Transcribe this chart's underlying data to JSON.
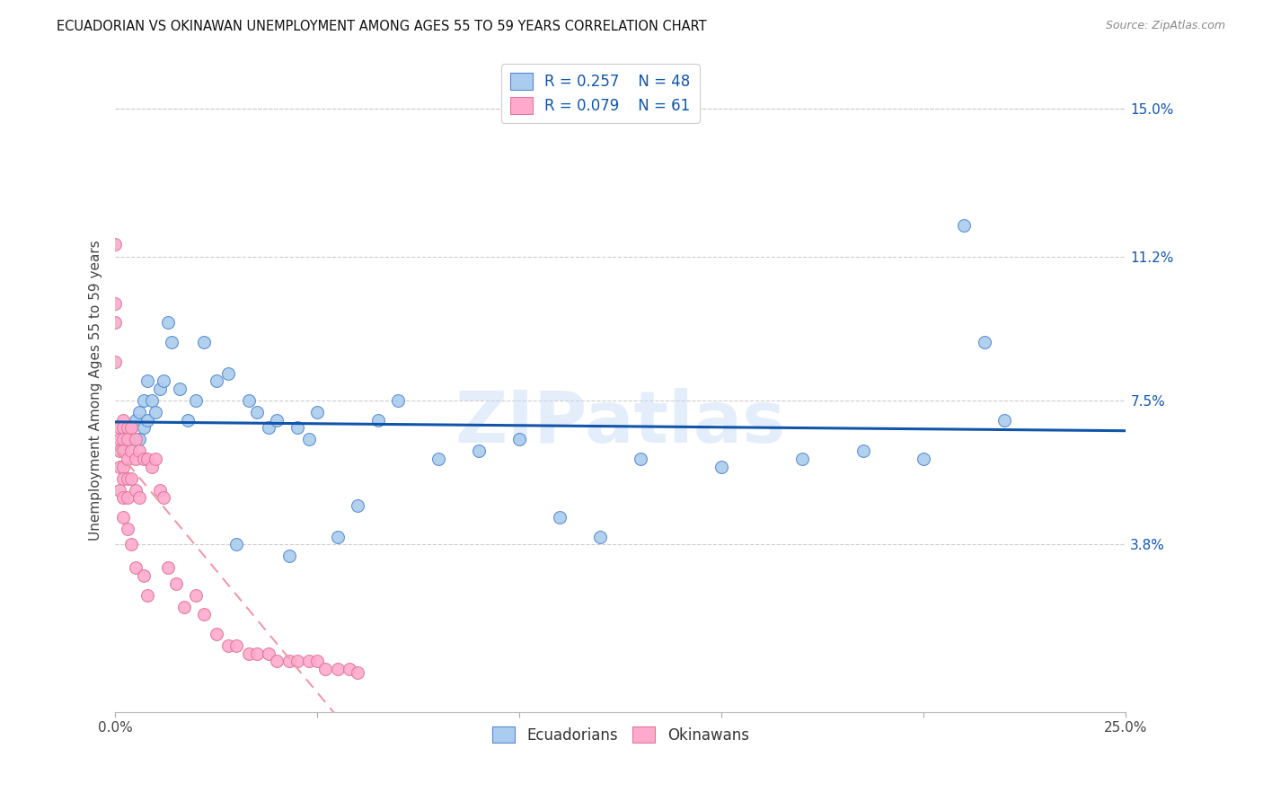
{
  "title": "ECUADORIAN VS OKINAWAN UNEMPLOYMENT AMONG AGES 55 TO 59 YEARS CORRELATION CHART",
  "source": "Source: ZipAtlas.com",
  "ylabel": "Unemployment Among Ages 55 to 59 years",
  "xlim": [
    0.0,
    0.25
  ],
  "ylim": [
    -0.005,
    0.16
  ],
  "xticks": [
    0.0,
    0.05,
    0.1,
    0.15,
    0.2,
    0.25
  ],
  "xticklabels": [
    "0.0%",
    "",
    "",
    "",
    "",
    "25.0%"
  ],
  "ytick_right_labels": [
    "15.0%",
    "11.2%",
    "7.5%",
    "3.8%"
  ],
  "ytick_right_values": [
    0.15,
    0.112,
    0.075,
    0.038
  ],
  "legend_r1": "R = 0.257",
  "legend_n1": "N = 48",
  "legend_r2": "R = 0.079",
  "legend_n2": "N = 61",
  "blue_fill": "#aaccee",
  "blue_edge": "#5588cc",
  "pink_fill": "#ffaacc",
  "pink_edge": "#dd7799",
  "blue_line": "#1155aa",
  "pink_line": "#ee99aa",
  "background_color": "#ffffff",
  "grid_color": "#cccccc",
  "watermark": "ZIPatlas",
  "ecuadorians_x": [
    0.002,
    0.003,
    0.004,
    0.005,
    0.006,
    0.006,
    0.007,
    0.007,
    0.008,
    0.008,
    0.009,
    0.01,
    0.011,
    0.012,
    0.013,
    0.014,
    0.016,
    0.018,
    0.02,
    0.022,
    0.025,
    0.028,
    0.03,
    0.033,
    0.035,
    0.038,
    0.04,
    0.043,
    0.045,
    0.048,
    0.05,
    0.055,
    0.06,
    0.065,
    0.07,
    0.08,
    0.09,
    0.1,
    0.11,
    0.12,
    0.13,
    0.15,
    0.17,
    0.185,
    0.2,
    0.21,
    0.215,
    0.22
  ],
  "ecuadorians_y": [
    0.063,
    0.065,
    0.068,
    0.07,
    0.065,
    0.072,
    0.068,
    0.075,
    0.07,
    0.08,
    0.075,
    0.072,
    0.078,
    0.08,
    0.095,
    0.09,
    0.078,
    0.07,
    0.075,
    0.09,
    0.08,
    0.082,
    0.038,
    0.075,
    0.072,
    0.068,
    0.07,
    0.035,
    0.068,
    0.065,
    0.072,
    0.04,
    0.048,
    0.07,
    0.075,
    0.06,
    0.062,
    0.065,
    0.045,
    0.04,
    0.06,
    0.058,
    0.06,
    0.062,
    0.06,
    0.12,
    0.09,
    0.07
  ],
  "okinawans_x": [
    0.0,
    0.0,
    0.0,
    0.0,
    0.001,
    0.001,
    0.001,
    0.001,
    0.001,
    0.002,
    0.002,
    0.002,
    0.002,
    0.002,
    0.002,
    0.002,
    0.002,
    0.003,
    0.003,
    0.003,
    0.003,
    0.003,
    0.003,
    0.004,
    0.004,
    0.004,
    0.004,
    0.005,
    0.005,
    0.005,
    0.005,
    0.006,
    0.006,
    0.007,
    0.007,
    0.008,
    0.008,
    0.009,
    0.01,
    0.011,
    0.012,
    0.013,
    0.015,
    0.017,
    0.02,
    0.022,
    0.025,
    0.028,
    0.03,
    0.033,
    0.035,
    0.038,
    0.04,
    0.043,
    0.045,
    0.048,
    0.05,
    0.052,
    0.055,
    0.058,
    0.06
  ],
  "okinawans_y": [
    0.115,
    0.1,
    0.095,
    0.085,
    0.068,
    0.065,
    0.062,
    0.058,
    0.052,
    0.07,
    0.068,
    0.065,
    0.062,
    0.058,
    0.055,
    0.05,
    0.045,
    0.068,
    0.065,
    0.06,
    0.055,
    0.05,
    0.042,
    0.068,
    0.062,
    0.055,
    0.038,
    0.065,
    0.06,
    0.052,
    0.032,
    0.062,
    0.05,
    0.06,
    0.03,
    0.06,
    0.025,
    0.058,
    0.06,
    0.052,
    0.05,
    0.032,
    0.028,
    0.022,
    0.025,
    0.02,
    0.015,
    0.012,
    0.012,
    0.01,
    0.01,
    0.01,
    0.008,
    0.008,
    0.008,
    0.008,
    0.008,
    0.006,
    0.006,
    0.006,
    0.005
  ]
}
